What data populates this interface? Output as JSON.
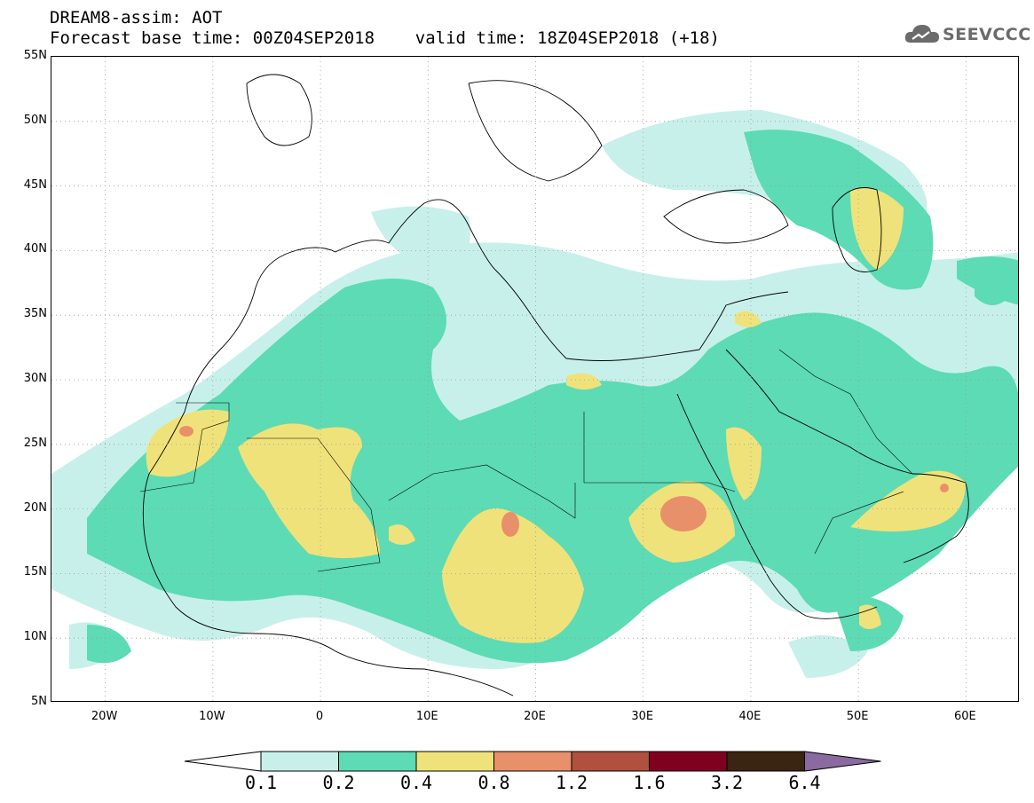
{
  "header": {
    "title_line1": "DREAM8-assim: AOT",
    "title_line2": "Forecast base time: 00Z04SEP2018    valid time: 18Z04SEP2018 (+18)"
  },
  "logo": {
    "text": "SEEVCCC",
    "icon": "cloud-icon"
  },
  "map": {
    "lat_range": [
      5,
      55
    ],
    "lon_range": [
      -25,
      65
    ],
    "lat_labels": [
      "55N",
      "50N",
      "45N",
      "40N",
      "35N",
      "30N",
      "25N",
      "20N",
      "15N",
      "10N",
      "5N"
    ],
    "lon_labels": [
      "20W",
      "10W",
      "0",
      "10E",
      "20E",
      "30E",
      "40E",
      "50E",
      "60E"
    ],
    "grid": "dotted",
    "field": "AOT"
  },
  "colorbar": {
    "levels": [
      "0.1",
      "0.2",
      "0.4",
      "0.8",
      "1.2",
      "1.6",
      "3.2",
      "6.4"
    ],
    "colors": [
      "#c8f0ea",
      "#5cdbb5",
      "#f0e27a",
      "#e8906a",
      "#b0503f",
      "#800020",
      "#3a2412",
      "#8a6aa0"
    ]
  }
}
